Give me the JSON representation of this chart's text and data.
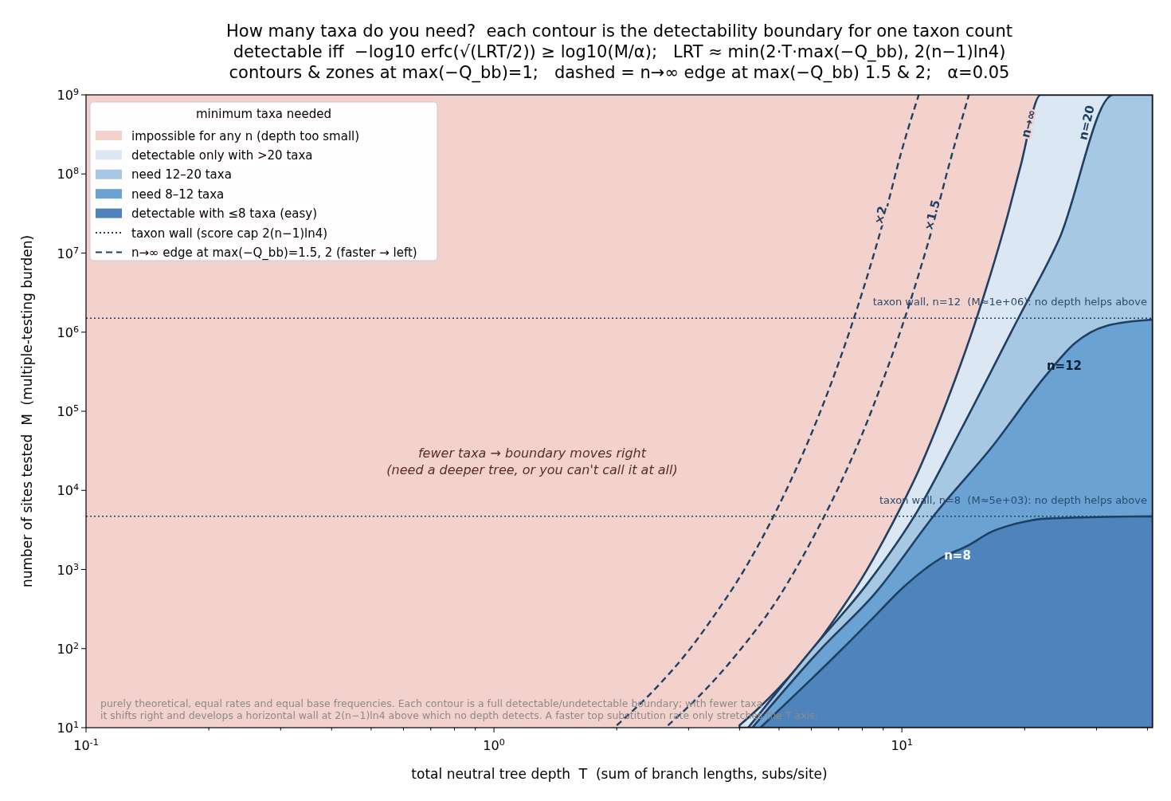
{
  "chart_data": {
    "type": "area",
    "title": "How many taxa do you need?  each contour is the detectability boundary for one taxon count",
    "subtitle": "detectable iff  −log10 erfc(√(LRT/2)) ≥ log10(M/α);   LRT ≈ min(2·T·max(−Q_bb), 2(n−1)ln4)\ncontours & zones at max(−Q_bb)=1;   dashed = n→∞ edge at max(−Q_bb) 1.5 & 2;   α=0.05",
    "xlabel": "total neutral tree depth  T  (sum of branch lengths, subs/site)",
    "ylabel": "number of sites tested  M  (multiple-testing burden)",
    "legend_title": "minimum taxa needed",
    "legend": "top left",
    "log": "xy",
    "grid": false,
    "xlim": [
      0.1,
      41.2
    ],
    "ylim": [
      10,
      1000000000
    ],
    "xticks": [
      {
        "value": 0.1,
        "label": "10$^{-1}$"
      },
      {
        "value": 0.2,
        "label": null
      },
      {
        "value": 0.3,
        "label": null
      },
      {
        "value": 0.4,
        "label": null
      },
      {
        "value": 0.5,
        "label": null
      },
      {
        "value": 0.6,
        "label": null
      },
      {
        "value": 0.7,
        "label": null
      },
      {
        "value": 0.8,
        "label": null
      },
      {
        "value": 0.9,
        "label": null
      },
      {
        "value": 1,
        "label": "10$^{0}$"
      },
      {
        "value": 2,
        "label": null
      },
      {
        "value": 3,
        "label": null
      },
      {
        "value": 4,
        "label": null
      },
      {
        "value": 5,
        "label": null
      },
      {
        "value": 6,
        "label": null
      },
      {
        "value": 7,
        "label": null
      },
      {
        "value": 8,
        "label": null
      },
      {
        "value": 9,
        "label": null
      },
      {
        "value": 10,
        "label": "10$^{1}$"
      },
      {
        "value": 20,
        "label": null
      },
      {
        "value": 30,
        "label": null
      },
      {
        "value": 40,
        "label": null
      }
    ],
    "yticks": [
      {
        "value": 10,
        "label": "10$^{1}$"
      },
      {
        "value": 100,
        "label": "10$^{2}$"
      },
      {
        "value": 1000,
        "label": "10$^{3}$"
      },
      {
        "value": 10000,
        "label": "10$^{4}$"
      },
      {
        "value": 100000,
        "label": "10$^{5}$"
      },
      {
        "value": 1000000,
        "label": "10$^{6}$"
      },
      {
        "value": 10000000,
        "label": "10$^{7}$"
      },
      {
        "value": 100000000,
        "label": "10$^{8}$"
      },
      {
        "value": 1000000000,
        "label": "10$^{9}$"
      }
    ],
    "bands": [
      {
        "axis": "x",
        "from": 0.1,
        "to": 41.2,
        "label": "impossible for any n (depth too small)",
        "color": "#f3d2cd"
      }
    ],
    "series": [
      {
        "name": "detectable only with >20 taxa",
        "color": "#dbe7f3",
        "x": [
          4,
          4.5,
          5,
          6,
          7,
          8,
          9,
          10,
          11,
          12,
          13.5,
          15,
          16.5,
          18,
          19.5,
          21.9,
          41.2
        ],
        "values": [
          10.7,
          18.5,
          32,
          94,
          280,
          790,
          2300,
          6500,
          18000,
          52000,
          250000,
          1160000,
          5400000,
          25000000,
          120000000,
          1000000000,
          1000000000
        ]
      },
      {
        "name": "need 12–20 taxa",
        "color": "#a6c8e3",
        "x": [
          4.2,
          6,
          8.3,
          10.9,
          14,
          19.3,
          24.3,
          33,
          41.2
        ],
        "values": [
          10,
          96,
          700,
          5400,
          60000,
          1500000,
          15000000,
          1000000000,
          1000000000
        ]
      },
      {
        "name": "need 8–12 taxa",
        "color": "#6aa3d3",
        "x": [
          4.3,
          6.3,
          8.6,
          12.2,
          16.6,
          22.5,
          26.5,
          31.7,
          41.2
        ],
        "values": [
          10,
          96,
          500,
          5400,
          35000,
          280000,
          720000,
          1200000,
          1440000
        ]
      },
      {
        "name": "detectable with ≤8 taxa (easy)",
        "color": "#4e83bc",
        "x": [
          4.5,
          7.1,
          8.6,
          10.1,
          12.5,
          14.5,
          16.6,
          19.5,
          22.6,
          41.2
        ],
        "values": [
          10,
          96,
          260,
          600,
          1400,
          2000,
          3000,
          3900,
          4400,
          4700
        ]
      },
      {
        "type": "line",
        "name": "taxon wall (score cap 2(n−1)ln4)",
        "color": "#1f3f63",
        "line_style": "dotted",
        "x": [
          0.1,
          41.2
        ],
        "values": [
          1500000,
          1500000
        ]
      },
      {
        "type": "line",
        "color": "#1f3f63",
        "line_style": "dotted",
        "x": [
          0.1,
          41.2
        ],
        "values": [
          4700,
          4700
        ]
      },
      {
        "type": "line",
        "name": "n→∞ edge at max(−Q_bb)=1.5, 2 (faster → left)",
        "color": "#1f3f63",
        "line_style": "dashed",
        "x": [
          2.67,
          3,
          4,
          5,
          6,
          7,
          8,
          9,
          10,
          11,
          12,
          13,
          14.6
        ],
        "values": [
          10.7,
          18.5,
          94,
          450,
          2300,
          11000,
          52000,
          250000,
          1160000,
          5400000,
          25000000,
          120000000,
          1000000000
        ]
      },
      {
        "type": "line",
        "color": "#1f3f63",
        "line_style": "dashed",
        "x": [
          2,
          2.5,
          3,
          3.5,
          4,
          5,
          6,
          7,
          8,
          9,
          10,
          11
        ],
        "values": [
          10.7,
          32,
          94,
          280,
          790,
          6500,
          52000,
          410000,
          3200000,
          25000000,
          200000000,
          1000000000
        ]
      }
    ],
    "annotations": [
      {
        "text": "n→∞",
        "x": 20.5,
        "y": 430000000
      },
      {
        "text": "×2",
        "x": 8.9,
        "y": 30000000
      },
      {
        "text": "×1.5",
        "x": 11.9,
        "y": 30000000
      },
      "n=20",
      "n=12",
      "n=8",
      "taxon wall, n=12  (M≈1e+06): no depth helps above",
      "taxon wall, n=8  (M≈5e+03): no depth helps above",
      "fewer taxa → boundary moves right\n(need a deeper tree, or you can't call it at all)",
      "purely theoretical, equal rates and equal base frequencies. Each contour is a full detectable/undetectable boundary; with fewer taxa\nit shifts right and develops a horizontal wall at 2(n−1)ln4 above which no depth detects. A faster top substitution rate only stretches the T axis."
    ]
  }
}
